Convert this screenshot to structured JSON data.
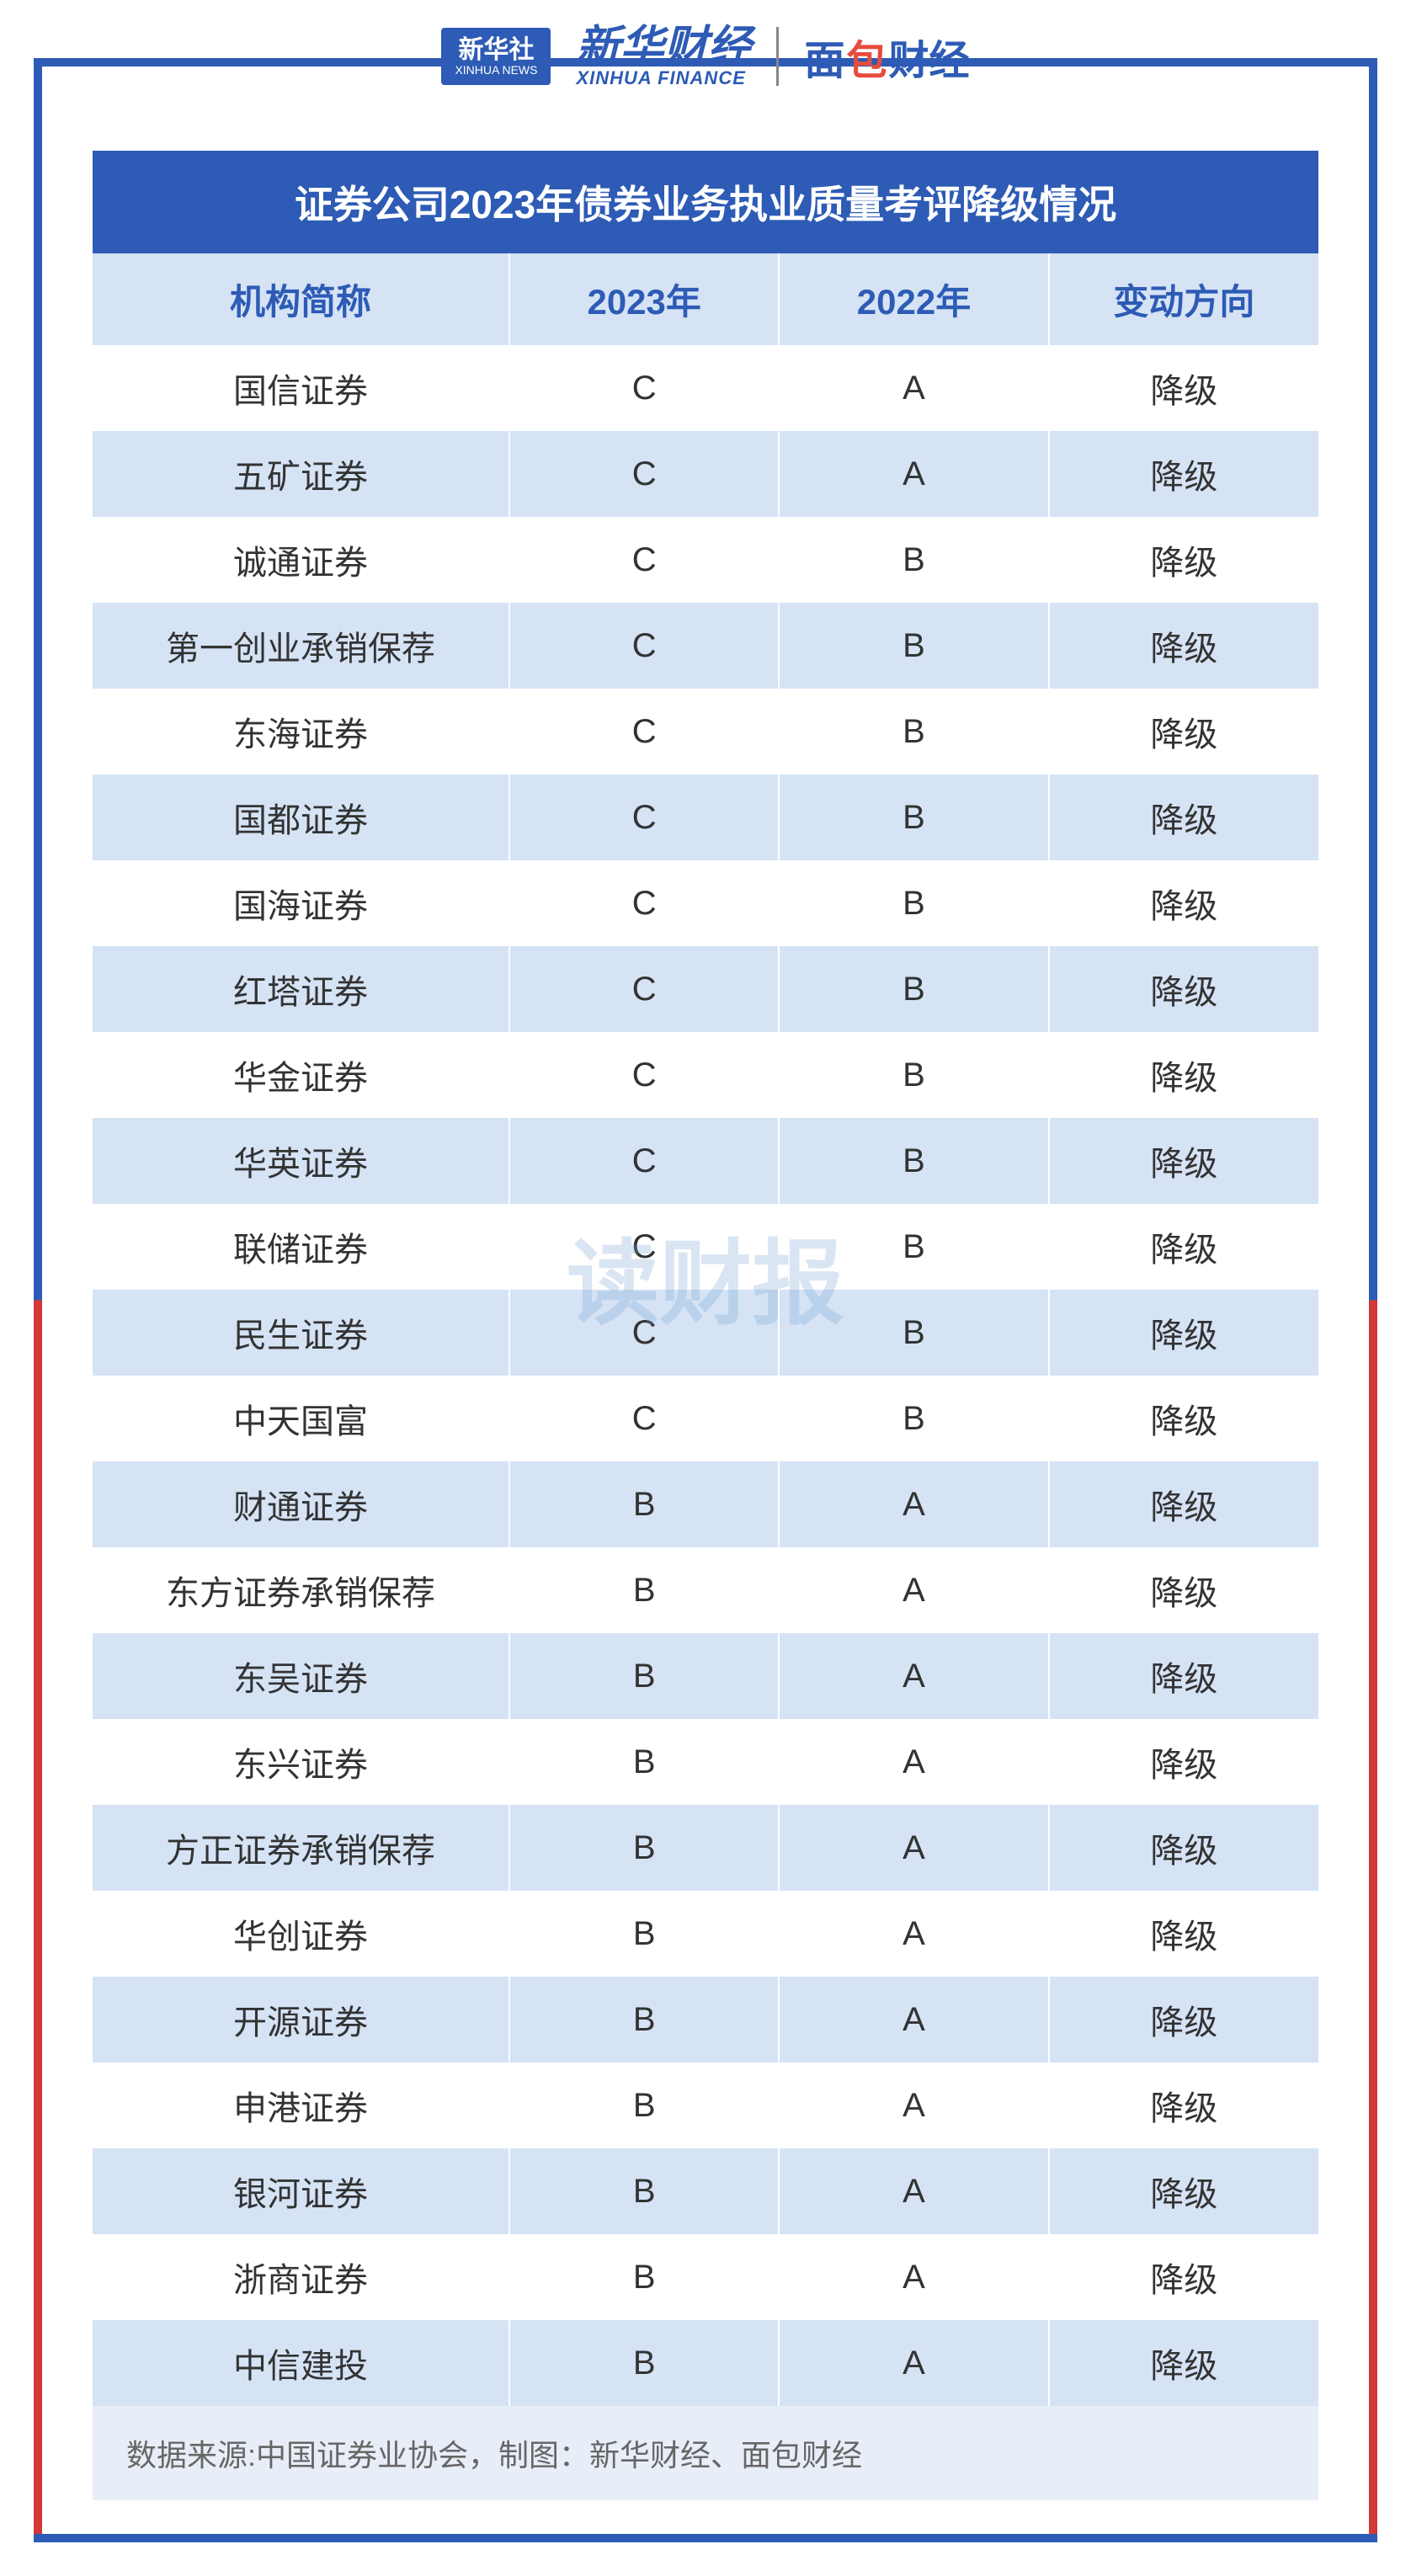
{
  "logos": {
    "xinhua_badge": "新华社",
    "xinhua_badge_sub": "XINHUA NEWS",
    "xinhua_main": "新华财经",
    "xinhua_sub": "XINHUA FINANCE",
    "bread_1": "面",
    "bread_2": "包",
    "bread_3": "财经"
  },
  "table": {
    "title": "证券公司2023年债券业务执业质量考评降级情况",
    "columns": [
      "机构简称",
      "2023年",
      "2022年",
      "变动方向"
    ],
    "rows": [
      [
        "国信证券",
        "C",
        "A",
        "降级"
      ],
      [
        "五矿证券",
        "C",
        "A",
        "降级"
      ],
      [
        "诚通证券",
        "C",
        "B",
        "降级"
      ],
      [
        "第一创业承销保荐",
        "C",
        "B",
        "降级"
      ],
      [
        "东海证券",
        "C",
        "B",
        "降级"
      ],
      [
        "国都证券",
        "C",
        "B",
        "降级"
      ],
      [
        "国海证券",
        "C",
        "B",
        "降级"
      ],
      [
        "红塔证券",
        "C",
        "B",
        "降级"
      ],
      [
        "华金证券",
        "C",
        "B",
        "降级"
      ],
      [
        "华英证券",
        "C",
        "B",
        "降级"
      ],
      [
        "联储证券",
        "C",
        "B",
        "降级"
      ],
      [
        "民生证券",
        "C",
        "B",
        "降级"
      ],
      [
        "中天国富",
        "C",
        "B",
        "降级"
      ],
      [
        "财通证券",
        "B",
        "A",
        "降级"
      ],
      [
        "东方证券承销保荐",
        "B",
        "A",
        "降级"
      ],
      [
        "东吴证券",
        "B",
        "A",
        "降级"
      ],
      [
        "东兴证券",
        "B",
        "A",
        "降级"
      ],
      [
        "方正证券承销保荐",
        "B",
        "A",
        "降级"
      ],
      [
        "华创证券",
        "B",
        "A",
        "降级"
      ],
      [
        "开源证券",
        "B",
        "A",
        "降级"
      ],
      [
        "申港证券",
        "B",
        "A",
        "降级"
      ],
      [
        "银河证券",
        "B",
        "A",
        "降级"
      ],
      [
        "浙商证券",
        "B",
        "A",
        "降级"
      ],
      [
        "中信建投",
        "B",
        "A",
        "降级"
      ]
    ],
    "column_widths": [
      "34%",
      "22%",
      "22%",
      "22%"
    ],
    "title_bg": "#2d5bb5",
    "title_color": "#ffffff",
    "header_bg": "#d5e3f5",
    "header_color": "#2d5bb5",
    "row_even_bg": "#ffffff",
    "row_odd_bg": "#d5e3f5",
    "text_color": "#333333",
    "title_fontsize": 46,
    "header_fontsize": 42,
    "cell_fontsize": 40
  },
  "footer": "数据来源:中国证券业协会，制图：新华财经、面包财经",
  "watermark": "读财报",
  "frame": {
    "border_top_color": "#2d5bb5",
    "border_side_gradient": [
      "#2d5bb5",
      "#d43838"
    ],
    "border_width": 10
  }
}
